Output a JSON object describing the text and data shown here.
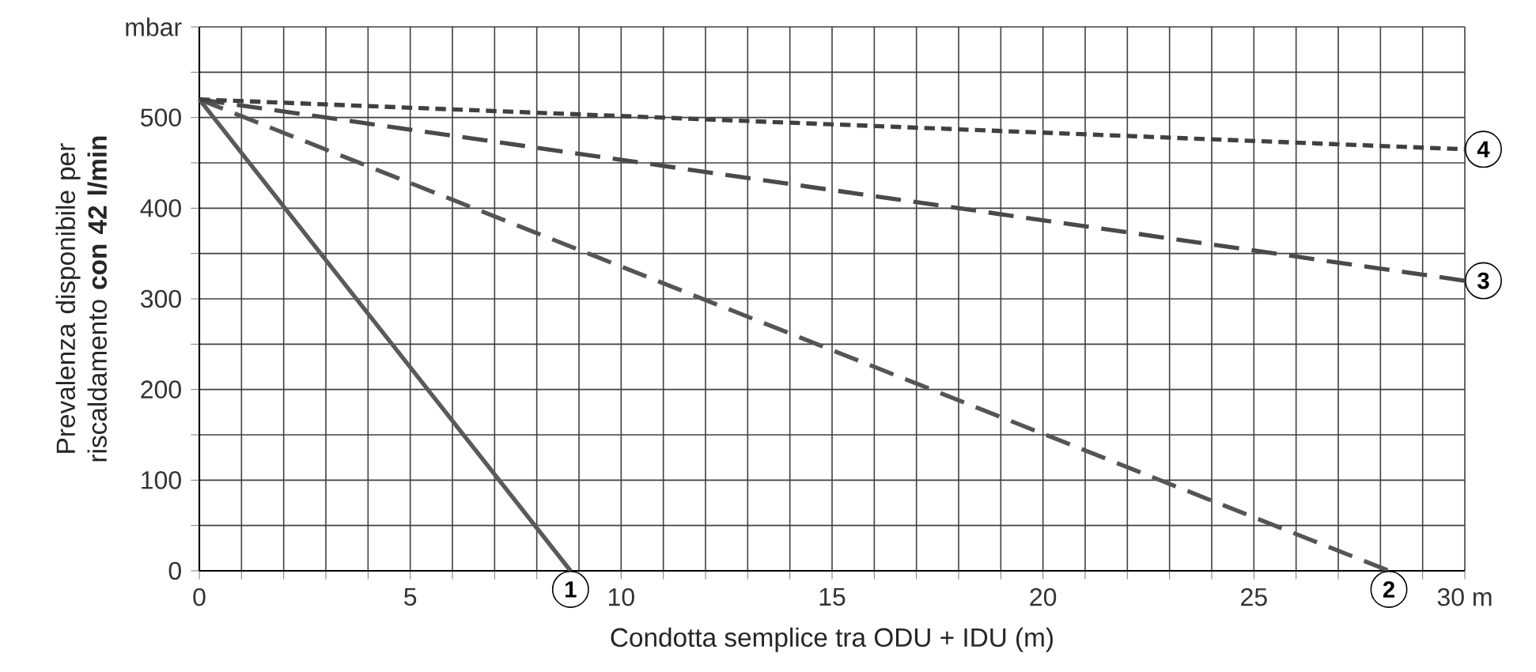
{
  "chart_data": {
    "type": "line",
    "xlabel": "Condotta semplice tra ODU + IDU  (m)",
    "ylabel": "Prevalenza disponibile per riscaldamento **con 42 l/min**",
    "xlim": [
      0,
      30
    ],
    "ylim": [
      0,
      600
    ],
    "xticks": [
      0,
      {
        "value": 1,
        "label": null
      },
      {
        "value": 2,
        "label": null
      },
      {
        "value": 3,
        "label": null
      },
      {
        "value": 4,
        "label": null
      },
      5,
      {
        "value": 6,
        "label": null
      },
      {
        "value": 7,
        "label": null
      },
      {
        "value": 8,
        "label": null
      },
      {
        "value": 9,
        "label": null
      },
      10,
      {
        "value": 11,
        "label": null
      },
      {
        "value": 12,
        "label": null
      },
      {
        "value": 13,
        "label": null
      },
      {
        "value": 14,
        "label": null
      },
      15,
      {
        "value": 16,
        "label": null
      },
      {
        "value": 17,
        "label": null
      },
      {
        "value": 18,
        "label": null
      },
      {
        "value": 19,
        "label": null
      },
      20,
      {
        "value": 21,
        "label": null
      },
      {
        "value": 22,
        "label": null
      },
      {
        "value": 23,
        "label": null
      },
      {
        "value": 24,
        "label": null
      },
      25,
      {
        "value": 26,
        "label": null
      },
      {
        "value": 27,
        "label": null
      },
      {
        "value": 28,
        "label": null
      },
      {
        "value": 29,
        "label": null
      },
      {
        "value": 30,
        "label": "30 m"
      }
    ],
    "yticks": [
      0,
      {
        "value": 50,
        "label": null
      },
      100,
      {
        "value": 150,
        "label": null
      },
      200,
      {
        "value": 250,
        "label": null
      },
      300,
      {
        "value": 350,
        "label": null
      },
      400,
      {
        "value": 450,
        "label": null
      },
      500,
      {
        "value": 550,
        "label": null
      },
      {
        "value": 600,
        "label": "mbar"
      }
    ],
    "grid": true,
    "series": [
      {
        "color": "#5a5a5a",
        "line_style": "solid",
        "x": [
          0,
          8.8
        ],
        "values": [
          520,
          0
        ]
      },
      {
        "color": "#555555",
        "line_style": "dashed",
        "x": [
          0,
          28.2
        ],
        "values": [
          520,
          0
        ]
      },
      {
        "color": "#4a4a4a",
        "line_style": "dashed",
        "x": [
          0,
          30
        ],
        "values": [
          520,
          320
        ]
      },
      {
        "color": "#404040",
        "line_style": "dotted",
        "x": [
          0,
          30
        ],
        "values": [
          520,
          465
        ]
      }
    ],
    "annotations": [
      {
        "text": "1",
        "x": 8.8,
        "y": 0
      },
      {
        "text": "2",
        "x": 28.2,
        "y": 0
      },
      {
        "text": "3",
        "x": 30,
        "y": 320
      },
      {
        "text": "4",
        "x": 30,
        "y": 465
      }
    ]
  }
}
